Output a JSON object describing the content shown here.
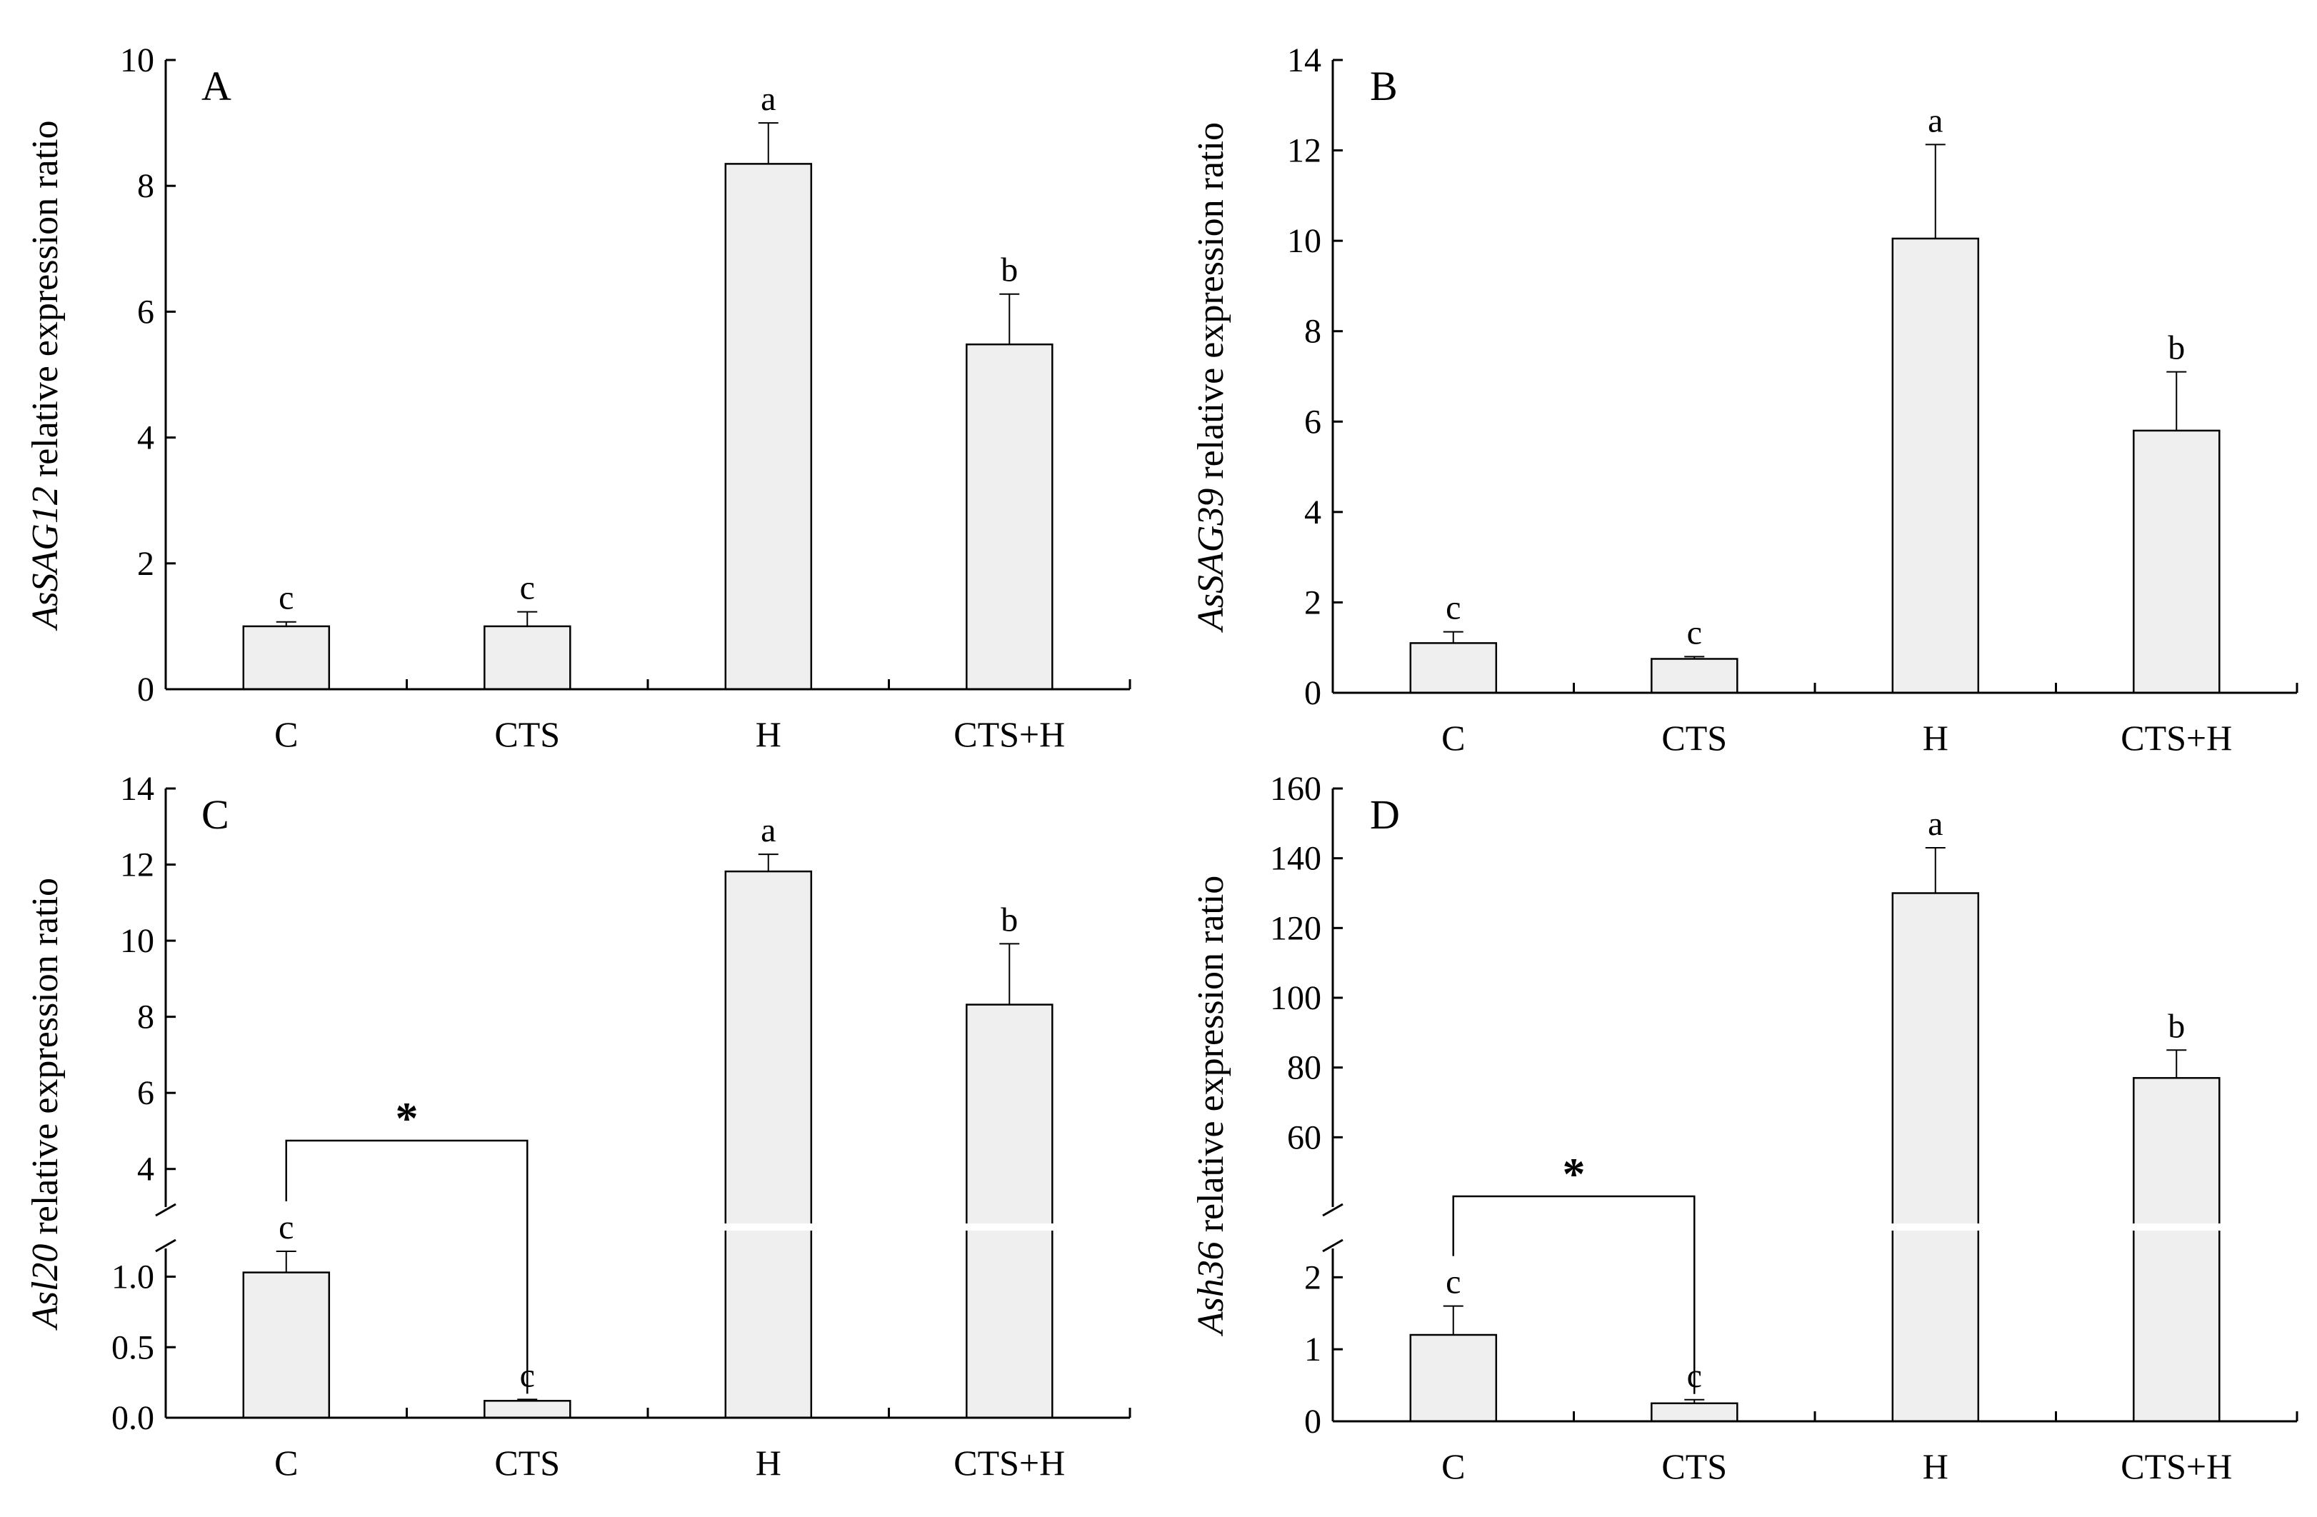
{
  "chart_data": [
    {
      "type": "bar",
      "panel": "A",
      "title": "",
      "ylabel_gene": "AsSAG12",
      "ylabel_rest": " relative expression ratio",
      "xlabel": "",
      "categories": [
        "C",
        "CTS",
        "H",
        "CTS+H"
      ],
      "values": [
        1.0,
        1.0,
        8.35,
        5.48
      ],
      "errors": [
        0.07,
        0.23,
        0.65,
        0.8
      ],
      "significance": [
        "c",
        "c",
        "a",
        "b"
      ],
      "ylim": [
        0,
        10
      ],
      "yticks": [
        0,
        2,
        4,
        6,
        8,
        10
      ],
      "ytick_labels": [
        "0",
        "2",
        "4",
        "6",
        "8",
        "10"
      ],
      "broken": false,
      "bracket": null
    },
    {
      "type": "bar",
      "panel": "B",
      "title": "",
      "ylabel_gene": "AsSAG39",
      "ylabel_rest": " relative expression ratio",
      "xlabel": "",
      "categories": [
        "C",
        "CTS",
        "H",
        "CTS+H"
      ],
      "values": [
        1.1,
        0.75,
        10.05,
        5.8
      ],
      "errors": [
        0.25,
        0.05,
        2.08,
        1.3
      ],
      "significance": [
        "c",
        "c",
        "a",
        "b"
      ],
      "ylim": [
        0,
        14
      ],
      "yticks": [
        0,
        2,
        4,
        6,
        8,
        10,
        12,
        14
      ],
      "ytick_labels": [
        "0",
        "2",
        "4",
        "6",
        "8",
        "10",
        "12",
        "14"
      ],
      "broken": false,
      "bracket": null
    },
    {
      "type": "bar",
      "panel": "C",
      "title": "",
      "ylabel_gene": "Asl20",
      "ylabel_rest": " relative expression ratio",
      "xlabel": "",
      "categories": [
        "C",
        "CTS",
        "H",
        "CTS+H"
      ],
      "values": [
        1.03,
        0.12,
        11.82,
        8.32
      ],
      "errors": [
        0.15,
        0.01,
        0.45,
        1.6
      ],
      "significance": [
        "c",
        "c",
        "a",
        "b"
      ],
      "broken": true,
      "lower_range": [
        0,
        1.2
      ],
      "upper_range": [
        3,
        14
      ],
      "yticks_lower": [
        0.0,
        0.5,
        1.0
      ],
      "ytick_labels_lower": [
        "0.0",
        "0.5",
        "1.0"
      ],
      "yticks_upper": [
        4,
        6,
        8,
        10,
        12,
        14
      ],
      "ytick_labels_upper": [
        "4",
        "6",
        "8",
        "10",
        "12",
        "14"
      ],
      "bracket": {
        "from": 0,
        "to": 1,
        "label": "*"
      }
    },
    {
      "type": "bar",
      "panel": "D",
      "title": "",
      "ylabel_gene": "Ash36",
      "ylabel_rest": " relative expression ratio",
      "xlabel": "",
      "categories": [
        "C",
        "CTS",
        "H",
        "CTS+H"
      ],
      "values": [
        1.2,
        0.25,
        130.0,
        77.0
      ],
      "errors": [
        0.4,
        0.05,
        13.0,
        8.0
      ],
      "significance": [
        "c",
        "c",
        "a",
        "b"
      ],
      "broken": true,
      "lower_range": [
        0,
        2.4
      ],
      "upper_range": [
        40,
        160
      ],
      "yticks_lower": [
        0,
        1,
        2
      ],
      "ytick_labels_lower": [
        "0",
        "1",
        "2"
      ],
      "yticks_upper": [
        60,
        80,
        100,
        120,
        140,
        160
      ],
      "ytick_labels_upper": [
        "60",
        "80",
        "100",
        "120",
        "140",
        "160"
      ],
      "bracket": {
        "from": 0,
        "to": 1,
        "label": "*"
      }
    }
  ]
}
